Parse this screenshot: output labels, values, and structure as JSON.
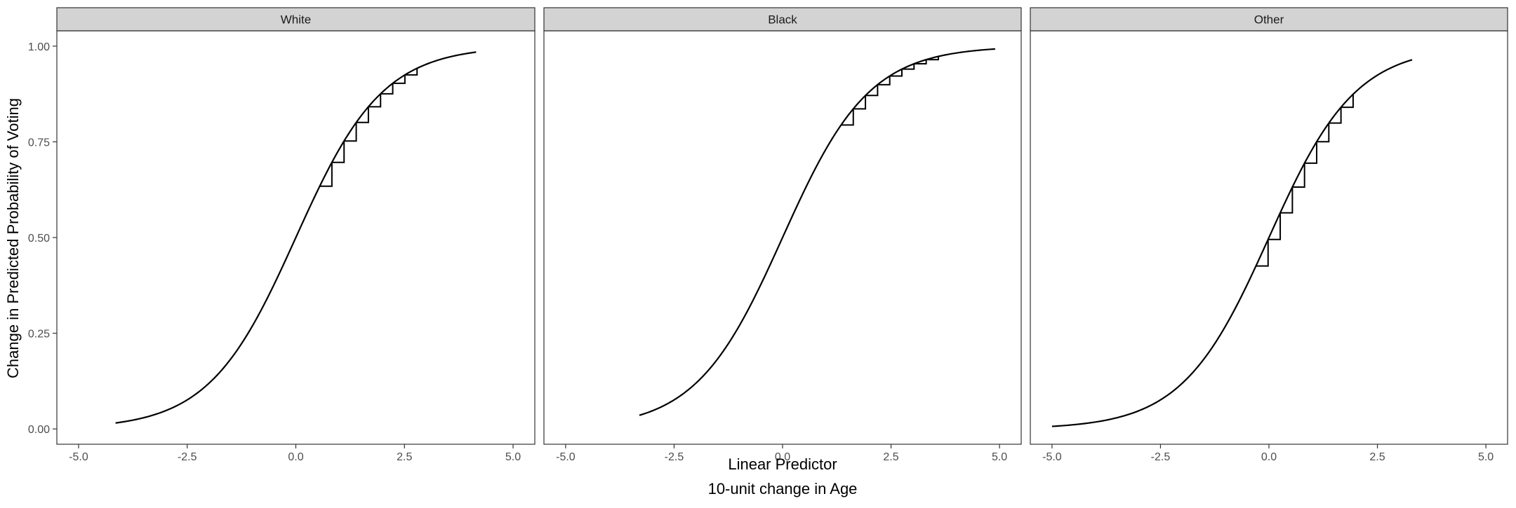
{
  "chart_data": {
    "type": "line",
    "xlabel": "Linear Predictor",
    "xlabel_sub": "10-unit change in Age",
    "ylabel": "Change in Predicted Probability of Voting",
    "xlim": [
      -5.5,
      5.5
    ],
    "ylim": [
      -0.04,
      1.04
    ],
    "x_ticks": [
      -5,
      -2.5,
      0,
      2.5,
      5
    ],
    "x_tick_labels": [
      "-5.0",
      "-2.5",
      "0.0",
      "2.5",
      "5.0"
    ],
    "y_ticks": [
      0,
      0.25,
      0.5,
      0.75,
      1
    ],
    "y_tick_labels": [
      "0.00",
      "0.25",
      "0.50",
      "0.75",
      "1.00"
    ],
    "grid": false,
    "curve": "logistic",
    "step_width": 0.28,
    "colors": {
      "line": "#000000",
      "strip": "#d3d3d3",
      "border": "#333333"
    },
    "panels": [
      {
        "label": "White",
        "x_range": [
          -4.15,
          4.15
        ],
        "steps_x": [
          0.55,
          0.83,
          1.11,
          1.39,
          1.67,
          1.95,
          2.23,
          2.51
        ]
      },
      {
        "label": "Black",
        "x_range": [
          -3.3,
          4.9
        ],
        "steps_x": [
          1.35,
          1.63,
          1.91,
          2.19,
          2.47,
          2.75,
          3.03,
          3.31
        ]
      },
      {
        "label": "Other",
        "x_range": [
          -5.0,
          3.3
        ],
        "steps_x": [
          -0.3,
          -0.02,
          0.26,
          0.54,
          0.82,
          1.1,
          1.38,
          1.66
        ]
      }
    ]
  }
}
